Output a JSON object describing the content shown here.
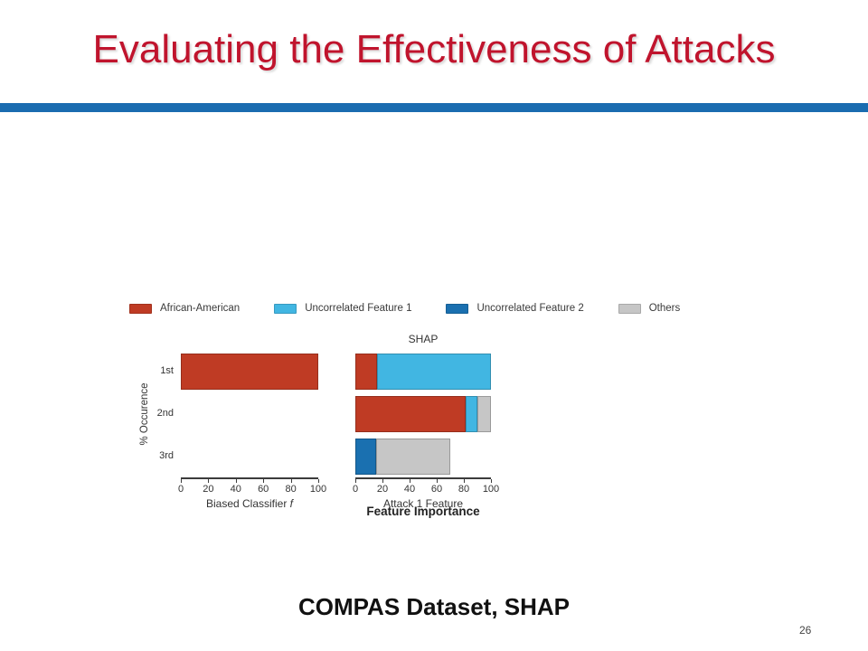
{
  "slide": {
    "title": "Evaluating the Effectiveness of Attacks",
    "caption": "COMPAS Dataset, SHAP",
    "page_number": "26",
    "title_color": "#c0142d",
    "divider_color": "#1a6cb0"
  },
  "chart_data": {
    "type": "bar",
    "orientation": "horizontal",
    "stacked": true,
    "grid": false,
    "categories": [
      "1st",
      "2nd",
      "3rd"
    ],
    "ylabel": "% Occurence",
    "shared_xlabel": "Feature Importance",
    "xlim": [
      0,
      100
    ],
    "xticks": [
      0,
      20,
      40,
      60,
      80,
      100
    ],
    "legend_position": "top",
    "legend": [
      {
        "label": "African-American",
        "color": "#bf3b24"
      },
      {
        "label": "Uncorrelated Feature 1",
        "color": "#41b6e2"
      },
      {
        "label": "Uncorrelated Feature 2",
        "color": "#1a70b0"
      },
      {
        "label": "Others",
        "color": "#c6c6c6"
      }
    ],
    "subplots": [
      {
        "title": "",
        "xlabel": "Biased Classifier",
        "xlabel_italic": "f",
        "series": [
          {
            "name": "African-American",
            "values": [
              100,
              0,
              0
            ]
          },
          {
            "name": "Uncorrelated Feature 1",
            "values": [
              0,
              0,
              0
            ]
          },
          {
            "name": "Uncorrelated Feature 2",
            "values": [
              0,
              0,
              0
            ]
          },
          {
            "name": "Others",
            "values": [
              0,
              0,
              0
            ]
          }
        ]
      },
      {
        "title": "SHAP",
        "xlabel": "Attack 1 Feature",
        "series": [
          {
            "name": "African-American",
            "values": [
              16,
              81,
              0
            ]
          },
          {
            "name": "Uncorrelated Feature 1",
            "values": [
              84,
              9,
              0
            ]
          },
          {
            "name": "Uncorrelated Feature 2",
            "values": [
              0,
              0,
              15
            ]
          },
          {
            "name": "Others",
            "values": [
              0,
              10,
              55
            ]
          }
        ]
      }
    ]
  }
}
